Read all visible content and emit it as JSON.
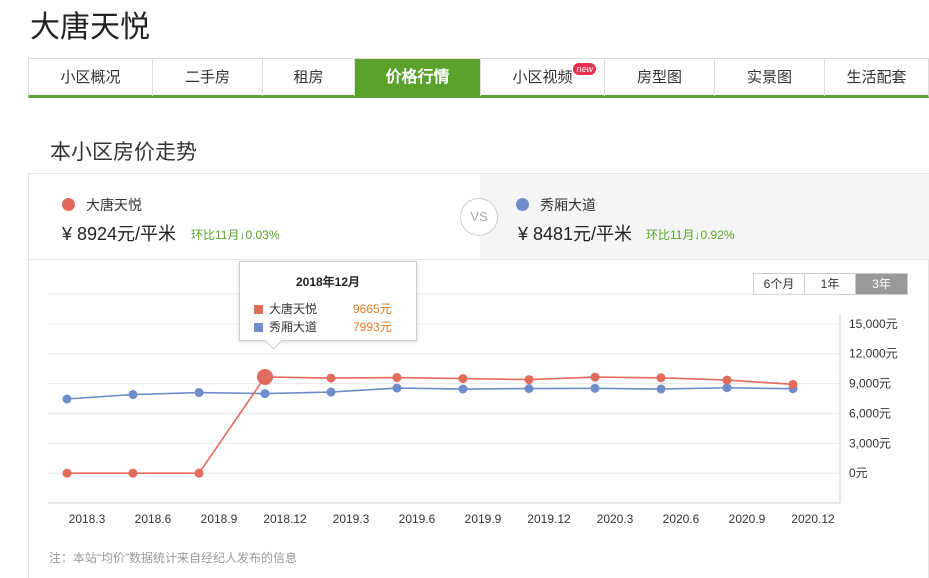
{
  "page": {
    "title": "大唐天悦",
    "section_title": "本小区房价走势",
    "note": "注：本站“均价”数据统计来自经纪人发布的信息"
  },
  "tabs": [
    {
      "label": "小区概况",
      "active": false
    },
    {
      "label": "二手房",
      "active": false
    },
    {
      "label": "租房",
      "active": false
    },
    {
      "label": "价格行情",
      "active": true
    },
    {
      "label": "小区视频",
      "active": false,
      "badge": "new"
    },
    {
      "label": "房型图",
      "active": false
    },
    {
      "label": "实景图",
      "active": false
    },
    {
      "label": "生活配套",
      "active": false
    }
  ],
  "compare": {
    "left": {
      "name": "大唐天悦",
      "price": "¥ 8924元/平米",
      "change": "环比11月↓0.03%",
      "color": "#e26b5b"
    },
    "vs": "VS",
    "right": {
      "name": "秀厢大道",
      "price": "¥ 8481元/平米",
      "change": "环比11月↓0.92%",
      "color": "#6f8ccb"
    }
  },
  "range_buttons": [
    {
      "label": "6个月",
      "active": false
    },
    {
      "label": "1年",
      "active": false
    },
    {
      "label": "3年",
      "active": true
    }
  ],
  "tooltip": {
    "title": "2018年12月",
    "rows": [
      {
        "name": "大唐天悦",
        "value": "9665元",
        "color": "#e26b5b"
      },
      {
        "name": "秀厢大道",
        "value": "7993元",
        "color": "#6f8ccb"
      }
    ]
  },
  "chart_data": {
    "type": "line",
    "x_labels": [
      "2018.3",
      "2018.6",
      "2018.9",
      "2018.12",
      "2019.3",
      "2019.6",
      "2019.9",
      "2019.12",
      "2020.3",
      "2020.6",
      "2020.9",
      "2020.12"
    ],
    "y_tick_labels": [
      "15,000元",
      "12,000元",
      "9,000元",
      "6,000元",
      "3,000元",
      "0元"
    ],
    "y_ticks": [
      15000,
      12000,
      9000,
      6000,
      3000,
      0
    ],
    "ylim": [
      -3000,
      18000
    ],
    "series": [
      {
        "name": "大唐天悦",
        "color": "#e26b5b",
        "values": [
          0,
          0,
          0,
          9665,
          9550,
          9600,
          9500,
          9400,
          9650,
          9580,
          9350,
          8924
        ],
        "highlight_index": 3
      },
      {
        "name": "秀厢大道",
        "color": "#6f8ccb",
        "values": [
          7450,
          7900,
          8100,
          7993,
          8150,
          8550,
          8450,
          8500,
          8520,
          8450,
          8580,
          8481
        ]
      }
    ]
  }
}
